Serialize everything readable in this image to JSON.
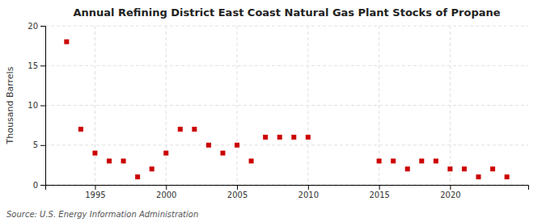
{
  "chart_data": {
    "type": "scatter",
    "title": "Annual Refining District East Coast Natural Gas Plant Stocks of Propane",
    "ylabel": "Thousand Barrels",
    "source": "Source: U.S. Energy Information Administration",
    "x": [
      1993,
      1994,
      1995,
      1996,
      1997,
      1998,
      1999,
      2000,
      2001,
      2002,
      2003,
      2004,
      2005,
      2006,
      2007,
      2008,
      2009,
      2010,
      2015,
      2016,
      2017,
      2018,
      2019,
      2020,
      2021,
      2022,
      2023,
      2024
    ],
    "values": [
      18,
      7,
      4,
      3,
      3,
      1,
      2,
      4,
      7,
      7,
      5,
      4,
      5,
      3,
      6,
      6,
      6,
      6,
      3,
      3,
      2,
      3,
      3,
      2,
      2,
      1,
      2,
      1
    ],
    "color": "#cc0000",
    "marker": "square",
    "xlim": [
      1991.5,
      2025.5
    ],
    "xticks": [
      1995,
      2000,
      2005,
      2010,
      2015,
      2020
    ],
    "ylim": [
      0,
      20
    ],
    "yticks": [
      0,
      5,
      10,
      15,
      20
    ],
    "grid": true
  }
}
